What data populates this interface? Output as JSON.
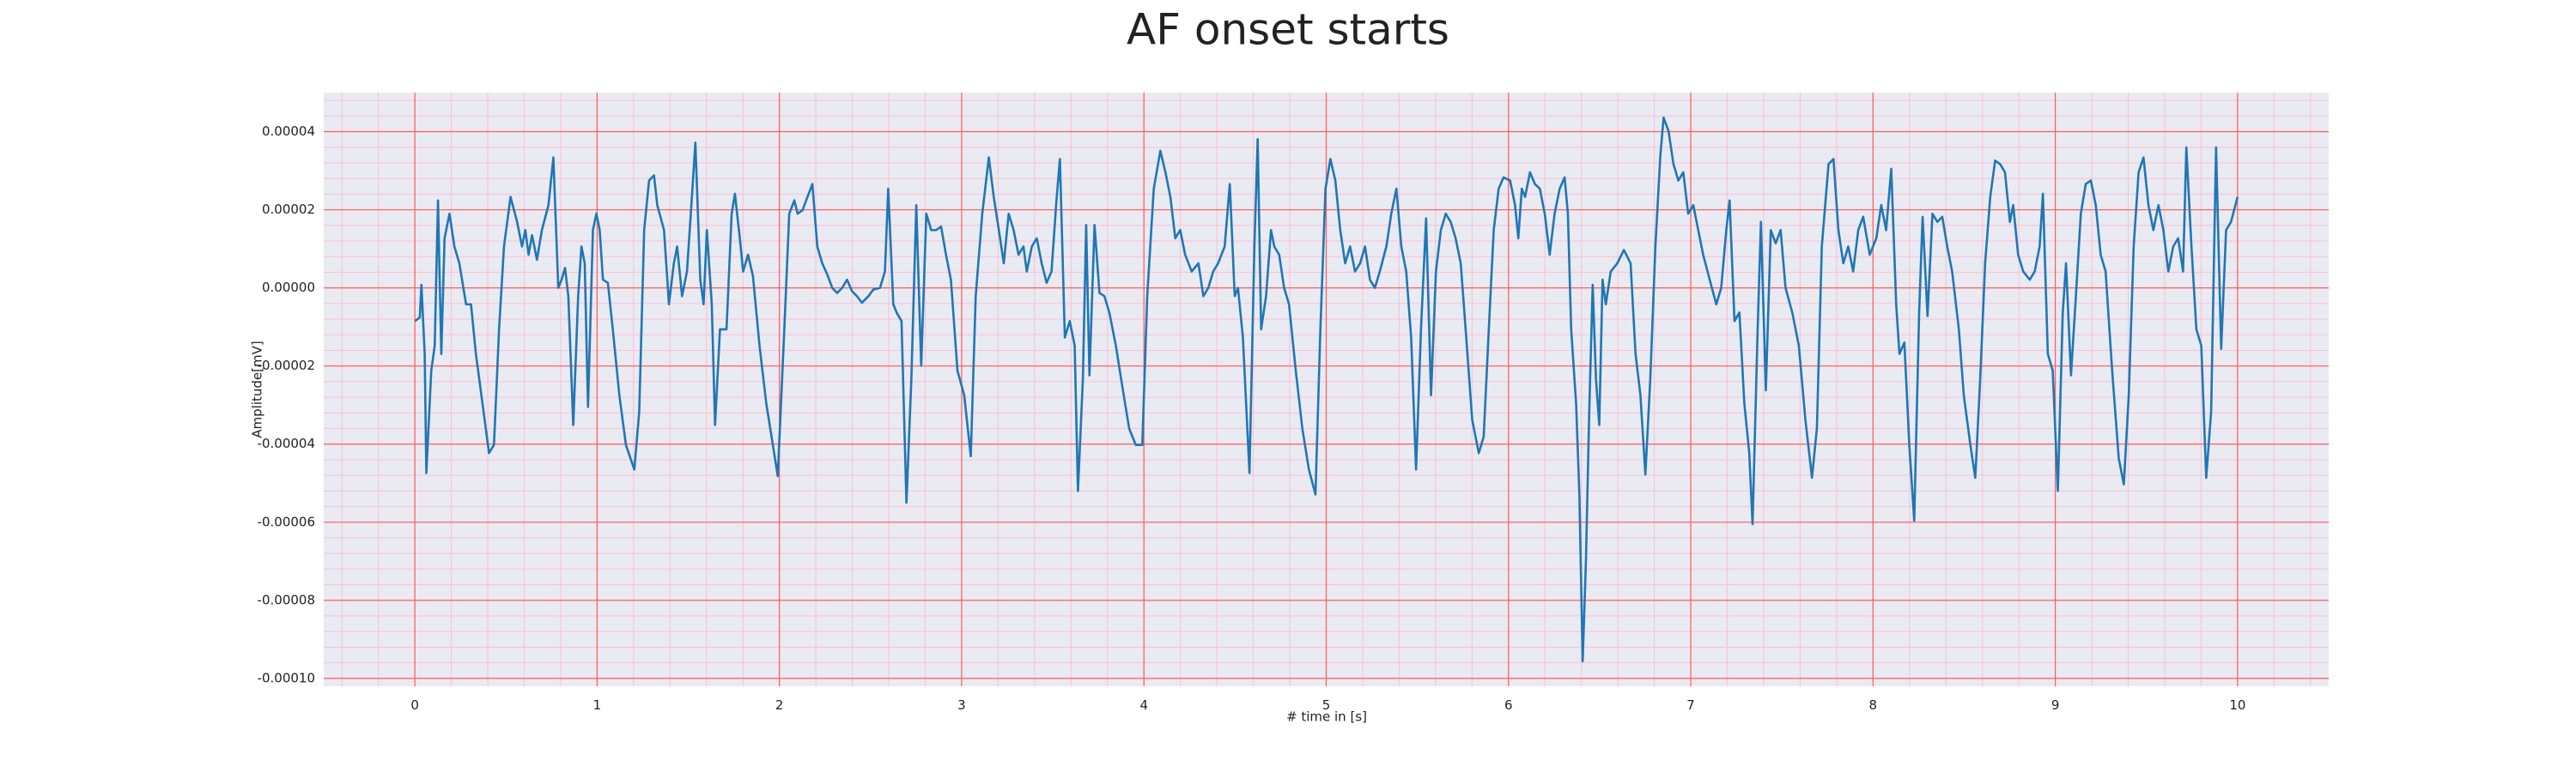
{
  "chart_data": {
    "type": "line",
    "title": "AF onset starts",
    "xlabel": "# time in [s]",
    "ylabel": "Amplitude[mV]",
    "color": "#1f77b4",
    "grid": true,
    "grid_color": "#ff5c5c",
    "minor_grid": true,
    "minor_grid_color": "#f6c2d2",
    "background": "#eaeaf2",
    "xlim": [
      -0.5,
      10.5
    ],
    "ylim": [
      -0.000102,
      5e-05
    ],
    "xticks": [
      0,
      1,
      2,
      3,
      4,
      5,
      6,
      7,
      8,
      9,
      10
    ],
    "yticks": [
      {
        "value": 4e-05,
        "label": "0.00004"
      },
      {
        "value": 2e-05,
        "label": "0.00002"
      },
      {
        "value": 0,
        "label": "0.00000"
      },
      {
        "value": -2e-05,
        "label": "-0.00002"
      },
      {
        "value": -4e-05,
        "label": "-0.00004"
      },
      {
        "value": -6e-05,
        "label": "-0.00006"
      },
      {
        "value": -8e-05,
        "label": "-0.00008"
      },
      {
        "value": -0.0001,
        "label": "-0.00010"
      }
    ],
    "x": [
      0,
      0.027,
      0.036,
      0.054,
      0.063,
      0.09,
      0.109,
      0.127,
      0.145,
      0.163,
      0.19,
      0.217,
      0.244,
      0.281,
      0.308,
      0.335,
      0.371,
      0.407,
      0.434,
      0.462,
      0.489,
      0.525,
      0.561,
      0.588,
      0.606,
      0.624,
      0.643,
      0.67,
      0.697,
      0.733,
      0.76,
      0.787,
      0.805,
      0.824,
      0.842,
      0.869,
      0.896,
      0.914,
      0.932,
      0.95,
      0.977,
      0.996,
      1.014,
      1.032,
      1.059,
      1.086,
      1.122,
      1.158,
      1.204,
      1.231,
      1.258,
      1.285,
      1.312,
      1.33,
      1.367,
      1.394,
      1.421,
      1.439,
      1.466,
      1.493,
      1.52,
      1.539,
      1.566,
      1.584,
      1.602,
      1.629,
      1.647,
      1.674,
      1.71,
      1.738,
      1.756,
      1.783,
      1.801,
      1.828,
      1.855,
      1.891,
      1.928,
      1.964,
      1.991,
      2.027,
      2.054,
      2.082,
      2.1,
      2.127,
      2.154,
      2.181,
      2.208,
      2.235,
      2.263,
      2.29,
      2.317,
      2.344,
      2.371,
      2.398,
      2.425,
      2.453,
      2.489,
      2.516,
      2.552,
      2.579,
      2.597,
      2.625,
      2.643,
      2.67,
      2.697,
      2.724,
      2.751,
      2.778,
      2.806,
      2.833,
      2.86,
      2.887,
      2.914,
      2.941,
      2.977,
      3.014,
      3.05,
      3.077,
      3.113,
      3.149,
      3.176,
      3.204,
      3.231,
      3.258,
      3.285,
      3.312,
      3.339,
      3.357,
      3.385,
      3.412,
      3.439,
      3.466,
      3.493,
      3.52,
      3.539,
      3.566,
      3.593,
      3.62,
      3.638,
      3.665,
      3.683,
      3.701,
      3.729,
      3.756,
      3.783,
      3.81,
      3.846,
      3.882,
      3.919,
      3.955,
      3.991,
      4.018,
      4.054,
      4.09,
      4.118,
      4.145,
      4.172,
      4.199,
      4.226,
      4.262,
      4.299,
      4.326,
      4.353,
      4.38,
      4.407,
      4.443,
      4.471,
      4.498,
      4.516,
      4.543,
      4.579,
      4.606,
      4.624,
      4.643,
      4.67,
      4.697,
      4.715,
      4.742,
      4.769,
      4.796,
      4.833,
      4.869,
      4.905,
      4.941,
      4.968,
      4.996,
      5.023,
      5.05,
      5.077,
      5.104,
      5.131,
      5.158,
      5.186,
      5.213,
      5.24,
      5.267,
      5.294,
      5.33,
      5.357,
      5.385,
      5.412,
      5.439,
      5.466,
      5.493,
      5.52,
      5.548,
      5.575,
      5.602,
      5.629,
      5.656,
      5.683,
      5.71,
      5.738,
      5.765,
      5.801,
      5.837,
      5.864,
      5.892,
      5.919,
      5.946,
      5.973,
      6.009,
      6.036,
      6.054,
      6.073,
      6.091,
      6.118,
      6.145,
      6.172,
      6.199,
      6.226,
      6.253,
      6.281,
      6.308,
      6.326,
      6.344,
      6.371,
      6.389,
      6.407,
      6.425,
      6.443,
      6.462,
      6.48,
      6.498,
      6.516,
      6.534,
      6.561,
      6.597,
      6.633,
      6.67,
      6.697,
      6.724,
      6.751,
      6.778,
      6.806,
      6.833,
      6.851,
      6.878,
      6.905,
      6.932,
      6.959,
      6.986,
      7.014,
      7.041,
      7.068,
      7.104,
      7.14,
      7.167,
      7.195,
      7.213,
      7.24,
      7.267,
      7.294,
      7.321,
      7.339,
      7.367,
      7.385,
      7.412,
      7.439,
      7.466,
      7.493,
      7.52,
      7.557,
      7.593,
      7.629,
      7.665,
      7.692,
      7.719,
      7.756,
      7.783,
      7.81,
      7.837,
      7.864,
      7.891,
      7.919,
      7.946,
      7.982,
      8.018,
      8.045,
      8.072,
      8.1,
      8.127,
      8.145,
      8.172,
      8.199,
      8.226,
      8.253,
      8.272,
      8.299,
      8.326,
      8.353,
      8.38,
      8.407,
      8.434,
      8.471,
      8.498,
      8.534,
      8.561,
      8.588,
      8.615,
      8.643,
      8.67,
      8.697,
      8.724,
      8.751,
      8.769,
      8.796,
      8.824,
      8.86,
      8.887,
      8.914,
      8.932,
      8.959,
      8.986,
      9.014,
      9.041,
      9.059,
      9.086,
      9.113,
      9.14,
      9.167,
      9.195,
      9.222,
      9.249,
      9.276,
      9.312,
      9.348,
      9.376,
      9.403,
      9.43,
      9.457,
      9.484,
      9.511,
      9.538,
      9.566,
      9.593,
      9.62,
      9.647,
      9.674,
      9.701,
      9.719,
      9.747,
      9.774,
      9.801,
      9.828,
      9.855,
      9.882,
      9.91,
      9.937,
      9.964,
      10.0
    ],
    "values": [
      -8.5e-06,
      -7.6e-06,
      8e-07,
      -1.69e-05,
      -4.74e-05,
      -2.12e-05,
      -1.48e-05,
      2.24e-05,
      -1.69e-05,
      1.27e-05,
      1.9e-05,
      1.06e-05,
      6.3e-06,
      -4.2e-06,
      -4.2e-06,
      -1.69e-05,
      -2.96e-05,
      -4.23e-05,
      -4.02e-05,
      -1.06e-05,
      1.06e-05,
      2.33e-05,
      1.69e-05,
      1.06e-05,
      1.48e-05,
      8.5e-06,
      1.35e-05,
      7.2e-06,
      1.48e-05,
      2.12e-05,
      3.34e-05,
      0,
      2.1e-06,
      5.1e-06,
      -2.1e-06,
      -3.51e-05,
      -2.1e-06,
      1.06e-05,
      6.3e-06,
      -3.05e-05,
      1.48e-05,
      1.9e-05,
      1.48e-05,
      2.1e-06,
      1.3e-06,
      -1.06e-05,
      -2.75e-05,
      -4.02e-05,
      -4.65e-05,
      -3.17e-05,
      1.48e-05,
      2.75e-05,
      2.88e-05,
      2.12e-05,
      1.48e-05,
      -4.2e-06,
      6.3e-06,
      1.06e-05,
      -2.1e-06,
      4.2e-06,
      2.33e-05,
      3.72e-05,
      2.1e-06,
      -4.2e-06,
      1.48e-05,
      -4.2e-06,
      -3.51e-05,
      -1.06e-05,
      -1.06e-05,
      1.9e-05,
      2.41e-05,
      1.27e-05,
      4.2e-06,
      8.5e-06,
      3e-06,
      -1.48e-05,
      -2.96e-05,
      -4.02e-05,
      -4.82e-05,
      -1.06e-05,
      1.9e-05,
      2.24e-05,
      1.9e-05,
      1.99e-05,
      2.33e-05,
      2.66e-05,
      1.06e-05,
      6.3e-06,
      3.4e-06,
      0,
      -1.3e-06,
      0,
      2.1e-06,
      -8e-07,
      -2.1e-06,
      -3.8e-06,
      -2.1e-06,
      -4e-07,
      0,
      4.2e-06,
      2.54e-05,
      -4.2e-06,
      -6.3e-06,
      -8.5e-06,
      -5.5e-05,
      -2.33e-05,
      2.12e-05,
      -1.99e-05,
      1.9e-05,
      1.48e-05,
      1.48e-05,
      1.57e-05,
      8.5e-06,
      2.1e-06,
      -2.12e-05,
      -2.75e-05,
      -4.31e-05,
      -2.1e-06,
      1.9e-05,
      3.34e-05,
      2.33e-05,
      1.48e-05,
      6.3e-06,
      1.9e-05,
      1.48e-05,
      8.5e-06,
      1.06e-05,
      4.2e-06,
      1.06e-05,
      1.27e-05,
      6.3e-06,
      1.3e-06,
      4.2e-06,
      2.24e-05,
      3.3e-05,
      -1.27e-05,
      -8.5e-06,
      -1.48e-05,
      -5.2e-05,
      -2.33e-05,
      1.61e-05,
      -2.24e-05,
      1.61e-05,
      -1.3e-06,
      -2.1e-06,
      -6.3e-06,
      -1.48e-05,
      -2.54e-05,
      -3.6e-05,
      -4.02e-05,
      -4.02e-05,
      -2.1e-06,
      2.54e-05,
      3.51e-05,
      2.96e-05,
      2.33e-05,
      1.27e-05,
      1.48e-05,
      8.5e-06,
      4.2e-06,
      6.3e-06,
      -2.1e-06,
      0,
      4.2e-06,
      6.3e-06,
      1.06e-05,
      2.66e-05,
      -2.1e-06,
      0,
      -1.27e-05,
      -4.74e-05,
      1.06e-05,
      3.81e-05,
      -1.06e-05,
      -2.1e-06,
      1.48e-05,
      1.06e-05,
      8.5e-06,
      0,
      -4.2e-06,
      -2.12e-05,
      -3.6e-05,
      -4.65e-05,
      -5.29e-05,
      -1.06e-05,
      2.54e-05,
      3.3e-05,
      2.75e-05,
      1.48e-05,
      6.3e-06,
      1.06e-05,
      4.2e-06,
      6.3e-06,
      1.06e-05,
      2.1e-06,
      0,
      4.2e-06,
      1.06e-05,
      1.9e-05,
      2.54e-05,
      1.06e-05,
      4.2e-06,
      -1.27e-05,
      -4.65e-05,
      -1.06e-05,
      1.78e-05,
      -2.75e-05,
      4.2e-06,
      1.48e-05,
      1.9e-05,
      1.69e-05,
      1.27e-05,
      6.3e-06,
      -1.06e-05,
      -3.38e-05,
      -4.23e-05,
      -3.81e-05,
      -1.06e-05,
      1.48e-05,
      2.54e-05,
      2.83e-05,
      2.75e-05,
      2.12e-05,
      1.27e-05,
      2.54e-05,
      2.33e-05,
      2.96e-05,
      2.66e-05,
      2.54e-05,
      1.9e-05,
      8.5e-06,
      1.9e-05,
      2.54e-05,
      2.83e-05,
      1.9e-05,
      -1.06e-05,
      -2.96e-05,
      -5.29e-05,
      -9.56e-05,
      -6.98e-05,
      -3.17e-05,
      8e-07,
      -2.33e-05,
      -3.51e-05,
      2.1e-06,
      -4.2e-06,
      4.2e-06,
      6.3e-06,
      9.7e-06,
      6.3e-06,
      -1.69e-05,
      -2.75e-05,
      -4.78e-05,
      -2.33e-05,
      1.06e-05,
      3.38e-05,
      4.36e-05,
      4.02e-05,
      3.17e-05,
      2.75e-05,
      2.96e-05,
      1.9e-05,
      2.12e-05,
      1.48e-05,
      8.5e-06,
      2.1e-06,
      -4.2e-06,
      0,
      1.48e-05,
      2.24e-05,
      -8.5e-06,
      -6.3e-06,
      -2.96e-05,
      -4.23e-05,
      -6.05e-05,
      -1.06e-05,
      1.69e-05,
      -2.62e-05,
      1.48e-05,
      1.14e-05,
      1.48e-05,
      0,
      -6.3e-06,
      -1.48e-05,
      -3.38e-05,
      -4.86e-05,
      -3.6e-05,
      1.06e-05,
      3.17e-05,
      3.3e-05,
      1.48e-05,
      6.3e-06,
      1.06e-05,
      4.2e-06,
      1.48e-05,
      1.82e-05,
      8.5e-06,
      1.27e-05,
      2.12e-05,
      1.48e-05,
      3.05e-05,
      -4.2e-06,
      -1.69e-05,
      -1.4e-05,
      -4.02e-05,
      -5.96e-05,
      -6.3e-06,
      1.82e-05,
      -7.2e-06,
      1.9e-05,
      1.69e-05,
      1.82e-05,
      1.06e-05,
      4.2e-06,
      -1.06e-05,
      -2.75e-05,
      -4.02e-05,
      -4.86e-05,
      -2.33e-05,
      6.3e-06,
      2.33e-05,
      3.26e-05,
      3.17e-05,
      2.96e-05,
      1.69e-05,
      2.12e-05,
      8.5e-06,
      4.2e-06,
      2.1e-06,
      4.2e-06,
      1.06e-05,
      2.41e-05,
      -1.69e-05,
      -2.12e-05,
      -5.2e-05,
      -6.3e-06,
      6.3e-06,
      -2.24e-05,
      -2.1e-06,
      1.9e-05,
      2.66e-05,
      2.75e-05,
      2.12e-05,
      8.5e-06,
      4.2e-06,
      -2.12e-05,
      -4.36e-05,
      -5.03e-05,
      -2.75e-05,
      1.06e-05,
      2.96e-05,
      3.34e-05,
      2.12e-05,
      1.48e-05,
      2.12e-05,
      1.48e-05,
      4.2e-06,
      1.06e-05,
      1.27e-05,
      4.2e-06,
      3.6e-05,
      1.06e-05,
      -1.06e-05,
      -1.48e-05,
      -4.86e-05,
      -3.17e-05,
      3.6e-05,
      -1.56e-05,
      1.48e-05,
      1.69e-05,
      2.33e-05
    ]
  }
}
